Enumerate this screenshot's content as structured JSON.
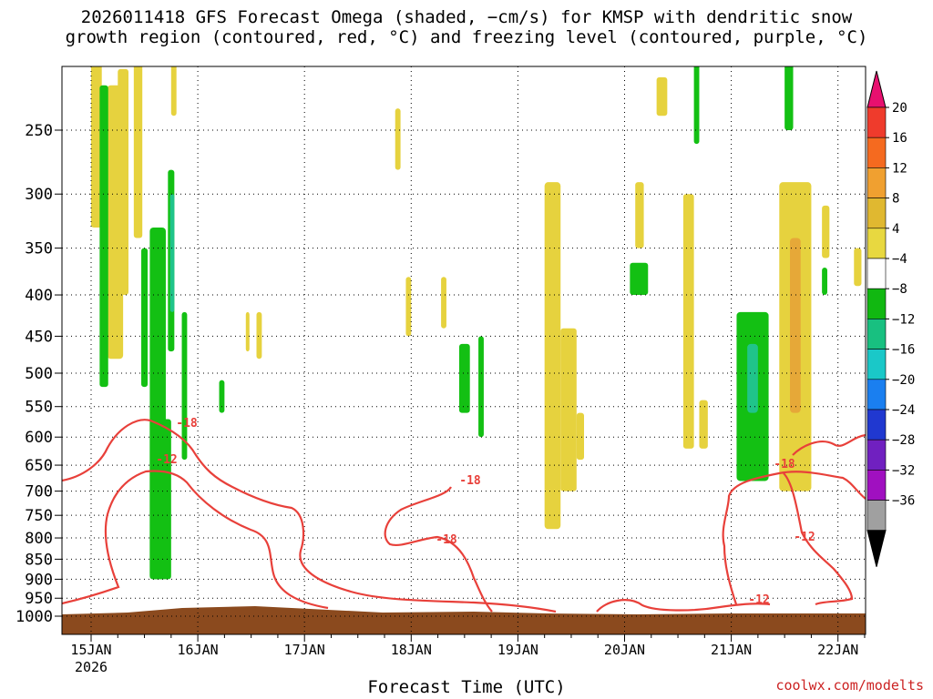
{
  "title": {
    "line1": "2026011418 GFS Forecast Omega (shaded, −cm/s) for KMSP with dendritic snow",
    "line2": "growth region (contoured, red, °C) and freezing level (contoured, purple, °C)"
  },
  "credit": "coolwx.com/modelts",
  "chart_data": {
    "type": "heatmap",
    "title": "2026011418 GFS Forecast Omega (shaded, −cm/s) for KMSP with dendritic snow growth region (contoured, red, °C) and freezing level (contoured, purple, °C)",
    "xlabel": "Forecast Time (UTC)",
    "ylabel": "",
    "y_scale": "log-pressure",
    "y_range_hPa": [
      1000,
      200
    ],
    "y_ticks": [
      "250",
      "300",
      "350",
      "400",
      "450",
      "500",
      "550",
      "600",
      "650",
      "700",
      "750",
      "800",
      "850",
      "900",
      "950",
      "1000"
    ],
    "x_ticks": [
      {
        "label": "15JAN",
        "sub": "2026"
      },
      {
        "label": "16JAN",
        "sub": ""
      },
      {
        "label": "17JAN",
        "sub": ""
      },
      {
        "label": "18JAN",
        "sub": ""
      },
      {
        "label": "19JAN",
        "sub": ""
      },
      {
        "label": "20JAN",
        "sub": ""
      },
      {
        "label": "21JAN",
        "sub": ""
      },
      {
        "label": "22JAN",
        "sub": ""
      }
    ],
    "grid": true,
    "colorbar": {
      "labels": [
        "20",
        "16",
        "12",
        "8",
        "4",
        "−4",
        "−8",
        "−12",
        "−16",
        "−20",
        "−24",
        "−28",
        "−32",
        "−36"
      ],
      "colors": [
        "#e8106f",
        "#ef3b2c",
        "#f56a1f",
        "#f0a030",
        "#e0b830",
        "#e8d840",
        "#ffffff",
        "#11b811",
        "#18c080",
        "#1ac8c8",
        "#1a7ff0",
        "#2038d0",
        "#7020c0",
        "#a010c0",
        "#a0a0a0",
        "#000000"
      ]
    },
    "omega_regions": [
      {
        "name": "",
        "day_start": 15.55,
        "day_end": 15.7,
        "p_top": 330,
        "p_bottom": 900,
        "value": -6
      },
      {
        "name": "",
        "day_start": 15.15,
        "day_end": 15.3,
        "p_top": 220,
        "p_bottom": 480,
        "value": 5
      },
      {
        "name": "",
        "day_start": 19.25,
        "day_end": 19.4,
        "p_top": 290,
        "p_bottom": 780,
        "value": 5
      },
      {
        "name": "",
        "day_start": 21.05,
        "day_end": 21.35,
        "p_top": 420,
        "p_bottom": 680,
        "value": -7
      },
      {
        "name": "",
        "day_start": 21.15,
        "day_end": 21.25,
        "p_top": 460,
        "p_bottom": 560,
        "value": -10
      },
      {
        "name": "",
        "day_start": 21.45,
        "day_end": 21.75,
        "p_top": 290,
        "p_bottom": 700,
        "value": 6
      },
      {
        "name": "",
        "day_start": 21.55,
        "day_end": 21.65,
        "p_top": 340,
        "p_bottom": 560,
        "value": 10
      }
    ],
    "dgz_contour_labels": [
      "-18",
      "-12",
      "-18",
      "-18",
      "-12",
      "-18",
      "-12"
    ]
  }
}
